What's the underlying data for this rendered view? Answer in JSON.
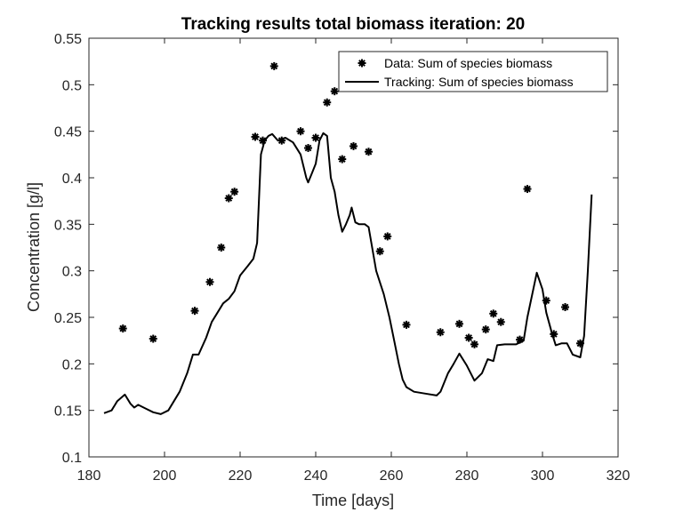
{
  "chart_data": {
    "type": "line",
    "title": "Tracking results total biomass iteration: 20",
    "xlabel": "Time [days]",
    "ylabel": "Concentration [g/l]",
    "xlim": [
      180,
      320
    ],
    "ylim": [
      0.1,
      0.55
    ],
    "xticks": [
      "180",
      "200",
      "220",
      "240",
      "260",
      "280",
      "300",
      "320"
    ],
    "yticks": [
      "0.1",
      "0.15",
      "0.2",
      "0.25",
      "0.3",
      "0.35",
      "0.4",
      "0.45",
      "0.5",
      "0.55"
    ],
    "grid": false,
    "legend_position": "top-right",
    "legend": [
      {
        "label": "Data: Sum of species biomass",
        "marker": "asterisk"
      },
      {
        "label": "Tracking: Sum of species biomass",
        "marker": "line"
      }
    ],
    "series": [
      {
        "name": "Data: Sum of species biomass",
        "style": "markers",
        "color": "#000000",
        "points": [
          [
            189,
            0.238
          ],
          [
            197,
            0.227
          ],
          [
            208,
            0.257
          ],
          [
            212,
            0.288
          ],
          [
            215,
            0.325
          ],
          [
            217,
            0.378
          ],
          [
            218.5,
            0.385
          ],
          [
            224,
            0.444
          ],
          [
            226,
            0.44
          ],
          [
            229,
            0.52
          ],
          [
            231,
            0.44
          ],
          [
            236,
            0.45
          ],
          [
            238,
            0.432
          ],
          [
            240,
            0.443
          ],
          [
            243,
            0.481
          ],
          [
            245,
            0.493
          ],
          [
            247,
            0.42
          ],
          [
            250,
            0.434
          ],
          [
            254,
            0.428
          ],
          [
            257,
            0.321
          ],
          [
            259,
            0.337
          ],
          [
            264,
            0.242
          ],
          [
            273,
            0.234
          ],
          [
            278,
            0.243
          ],
          [
            280.5,
            0.228
          ],
          [
            282,
            0.221
          ],
          [
            285,
            0.237
          ],
          [
            287,
            0.254
          ],
          [
            289,
            0.245
          ],
          [
            294,
            0.226
          ],
          [
            296,
            0.388
          ],
          [
            301,
            0.268
          ],
          [
            303,
            0.232
          ],
          [
            306,
            0.261
          ],
          [
            310,
            0.222
          ]
        ]
      },
      {
        "name": "Tracking: Sum of species biomass",
        "style": "line",
        "color": "#000000",
        "points": [
          [
            184,
            0.147
          ],
          [
            186,
            0.15
          ],
          [
            187.5,
            0.16
          ],
          [
            189.5,
            0.167
          ],
          [
            191,
            0.157
          ],
          [
            192,
            0.153
          ],
          [
            193,
            0.156
          ],
          [
            195,
            0.152
          ],
          [
            197,
            0.148
          ],
          [
            199,
            0.146
          ],
          [
            201,
            0.15
          ],
          [
            204,
            0.17
          ],
          [
            206,
            0.19
          ],
          [
            207.5,
            0.21
          ],
          [
            209,
            0.21
          ],
          [
            211,
            0.228
          ],
          [
            212.5,
            0.245
          ],
          [
            214,
            0.255
          ],
          [
            215.5,
            0.265
          ],
          [
            217,
            0.27
          ],
          [
            218.5,
            0.278
          ],
          [
            220,
            0.295
          ],
          [
            222,
            0.305
          ],
          [
            223.5,
            0.313
          ],
          [
            224.5,
            0.33
          ],
          [
            225.5,
            0.425
          ],
          [
            226.5,
            0.44
          ],
          [
            227.5,
            0.445
          ],
          [
            228.5,
            0.447
          ],
          [
            230,
            0.44
          ],
          [
            232,
            0.443
          ],
          [
            234,
            0.438
          ],
          [
            236,
            0.425
          ],
          [
            237.5,
            0.4
          ],
          [
            238,
            0.395
          ],
          [
            239,
            0.405
          ],
          [
            240,
            0.415
          ],
          [
            241,
            0.44
          ],
          [
            242,
            0.448
          ],
          [
            243,
            0.445
          ],
          [
            244,
            0.4
          ],
          [
            245,
            0.385
          ],
          [
            246,
            0.36
          ],
          [
            247,
            0.342
          ],
          [
            248,
            0.35
          ],
          [
            249,
            0.36
          ],
          [
            249.5,
            0.368
          ],
          [
            250.5,
            0.352
          ],
          [
            251.5,
            0.35
          ],
          [
            253,
            0.35
          ],
          [
            254,
            0.347
          ],
          [
            256,
            0.3
          ],
          [
            258,
            0.275
          ],
          [
            259.5,
            0.25
          ],
          [
            261,
            0.22
          ],
          [
            262,
            0.2
          ],
          [
            263,
            0.183
          ],
          [
            264,
            0.175
          ],
          [
            266,
            0.17
          ],
          [
            269,
            0.168
          ],
          [
            272,
            0.166
          ],
          [
            273,
            0.17
          ],
          [
            275,
            0.19
          ],
          [
            276.5,
            0.2
          ],
          [
            278,
            0.211
          ],
          [
            280,
            0.198
          ],
          [
            282,
            0.182
          ],
          [
            284,
            0.19
          ],
          [
            285.5,
            0.205
          ],
          [
            287,
            0.203
          ],
          [
            288,
            0.22
          ],
          [
            290,
            0.221
          ],
          [
            293,
            0.221
          ],
          [
            295,
            0.225
          ],
          [
            296,
            0.25
          ],
          [
            298.5,
            0.298
          ],
          [
            300,
            0.28
          ],
          [
            301,
            0.255
          ],
          [
            302.5,
            0.233
          ],
          [
            303.5,
            0.22
          ],
          [
            305,
            0.222
          ],
          [
            306.5,
            0.222
          ],
          [
            308,
            0.21
          ],
          [
            310,
            0.207
          ],
          [
            311,
            0.23
          ],
          [
            312,
            0.3
          ],
          [
            313,
            0.382
          ]
        ]
      }
    ]
  }
}
